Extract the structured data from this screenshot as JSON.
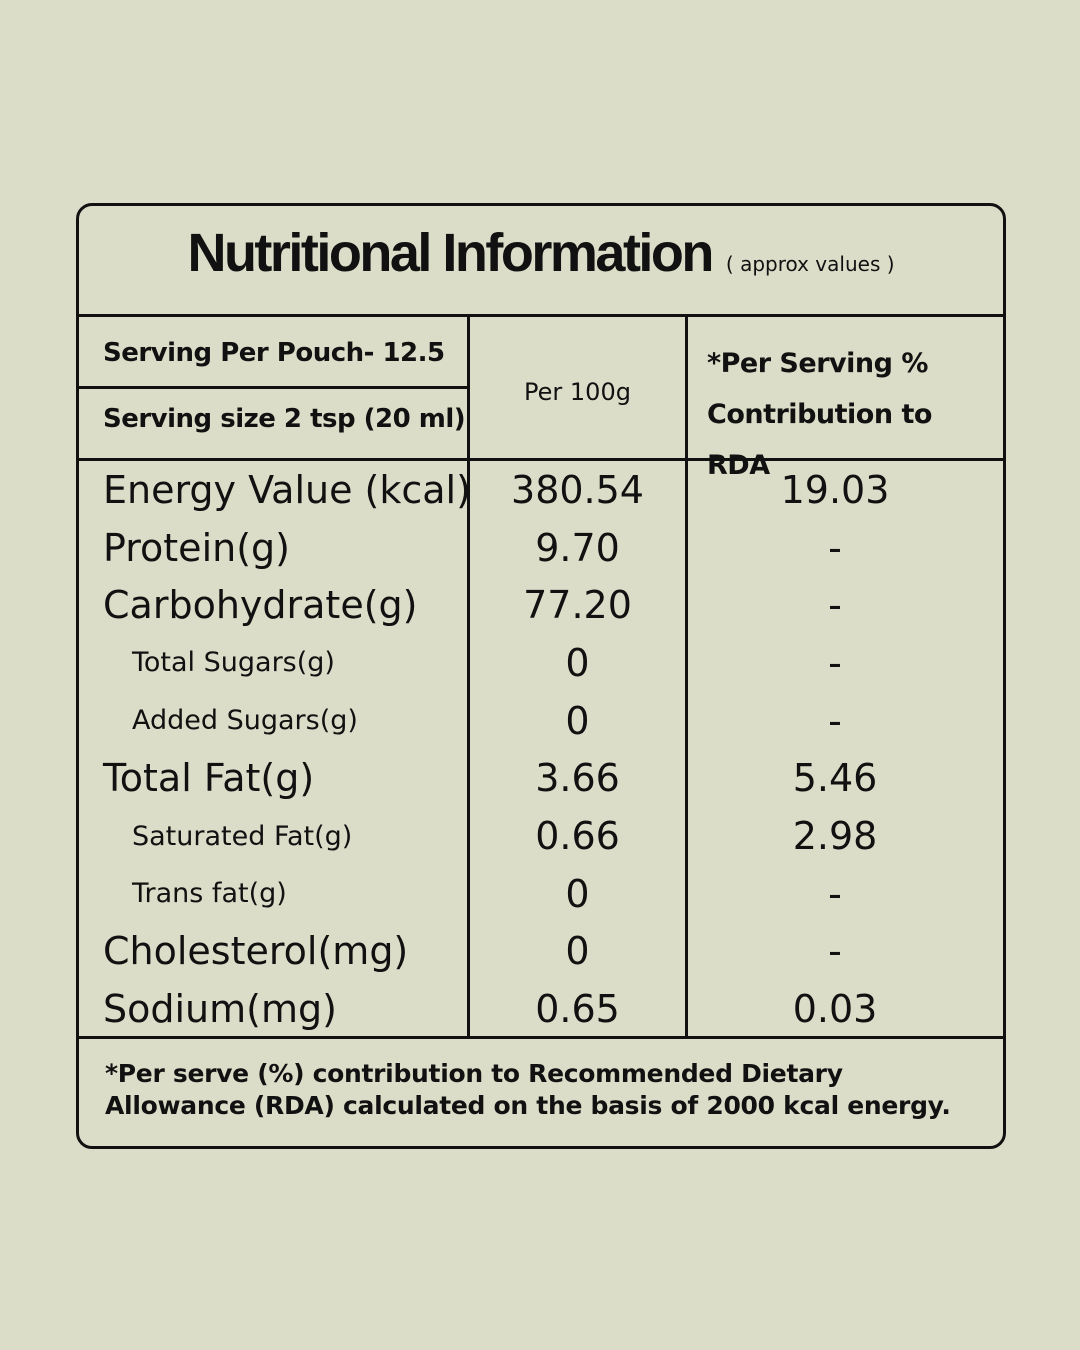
{
  "header": {
    "title": "Nutritional Information",
    "subtitle": "( approx values )"
  },
  "table": {
    "serving_per_pouch": "Serving Per Pouch- 12.5",
    "serving_size": "Serving size 2 tsp (20 ml)",
    "columns": [
      "Per 100g",
      "*Per Serving % Contribution to RDA"
    ],
    "rows": [
      {
        "label": "Energy Value (kcal)",
        "per_100g": "380.54",
        "rda": "19.03",
        "indent": false
      },
      {
        "label": "Protein(g)",
        "per_100g": "9.70",
        "rda": "-",
        "indent": false
      },
      {
        "label": "Carbohydrate(g)",
        "per_100g": "77.20",
        "rda": "-",
        "indent": false
      },
      {
        "label": "Total Sugars(g)",
        "per_100g": "0",
        "rda": "-",
        "indent": true
      },
      {
        "label": "Added Sugars(g)",
        "per_100g": "0",
        "rda": "-",
        "indent": true
      },
      {
        "label": "Total Fat(g)",
        "per_100g": "3.66",
        "rda": "5.46",
        "indent": false
      },
      {
        "label": "Saturated Fat(g)",
        "per_100g": "0.66",
        "rda": "2.98",
        "indent": true
      },
      {
        "label": "Trans fat(g)",
        "per_100g": "0",
        "rda": "-",
        "indent": true
      },
      {
        "label": "Cholesterol(mg)",
        "per_100g": "0",
        "rda": "-",
        "indent": false
      },
      {
        "label": "Sodium(mg)",
        "per_100g": "0.65",
        "rda": "0.03",
        "indent": false
      }
    ]
  },
  "footnote": "*Per serve (%) contribution to Recommended Dietary Allowance (RDA) calculated on the basis of 2000 kcal energy."
}
